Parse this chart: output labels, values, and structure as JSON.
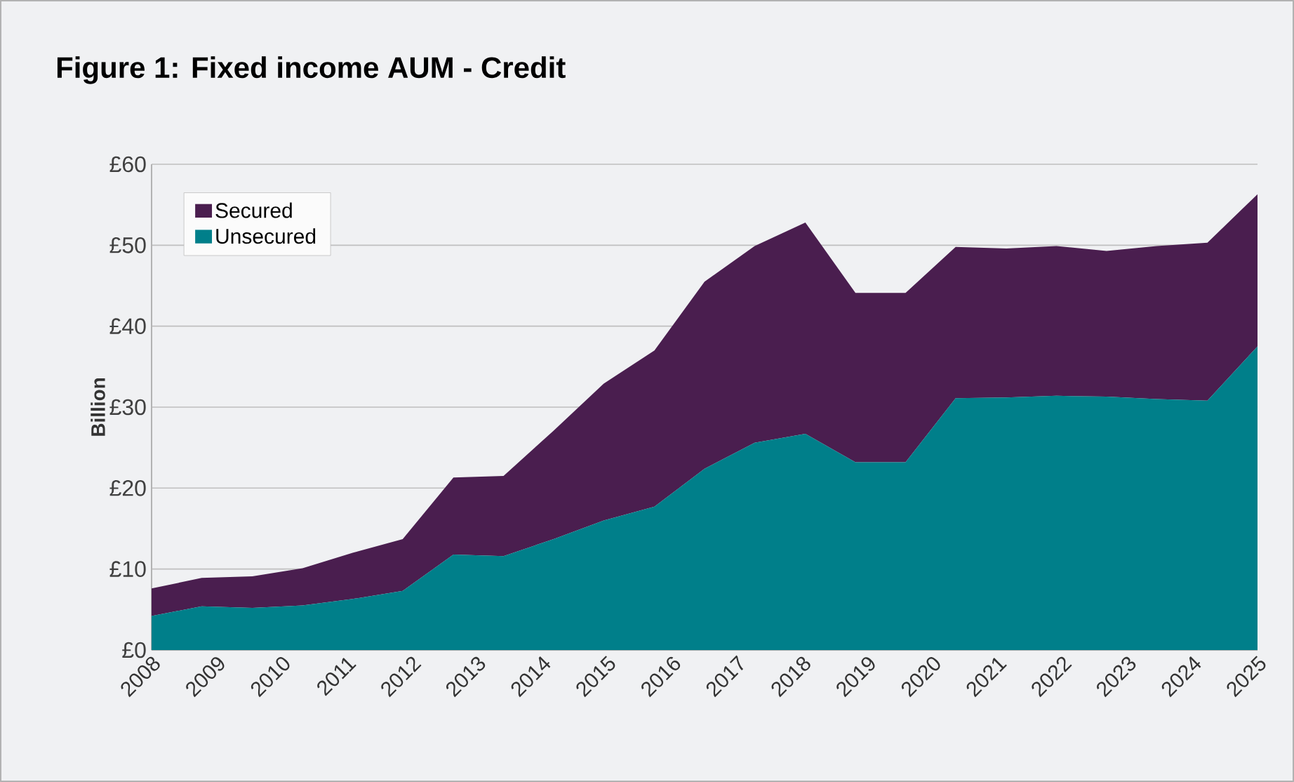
{
  "chart_data": {
    "type": "area",
    "title": "Figure 1: Fixed income AUM - Credit",
    "ylabel": "Billion",
    "stacked": true,
    "grid": "y",
    "legend": "top left",
    "x": [
      2008,
      2008.77,
      2009.55,
      2010.32,
      2011.09,
      2011.86,
      2012.64,
      2013.41,
      2014.18,
      2014.95,
      2015.73,
      2016.5,
      2017.27,
      2018.05,
      2018.82,
      2019.59,
      2020.36,
      2021.14,
      2021.91,
      2022.68,
      2023.45,
      2024.23,
      2025
    ],
    "xlim": [
      2008,
      2025
    ],
    "xticks": [
      2008,
      2009,
      2010,
      2011,
      2012,
      2013,
      2014,
      2015,
      2016,
      2017,
      2018,
      2019,
      2020,
      2021,
      2022,
      2023,
      2024,
      2025
    ],
    "ylim": [
      0,
      60
    ],
    "yticks": [
      {
        "value": 0,
        "label": "£0"
      },
      {
        "value": 10,
        "label": "£10"
      },
      {
        "value": 20,
        "label": "£20"
      },
      {
        "value": 30,
        "label": "£30"
      },
      {
        "value": 40,
        "label": "£40"
      },
      {
        "value": 50,
        "label": "£50"
      },
      {
        "value": 60,
        "label": "£60"
      }
    ],
    "series": [
      {
        "name": "Unsecured",
        "color": "#007f8a",
        "values": [
          4.2,
          5.4,
          5.2,
          5.5,
          6.3,
          7.3,
          11.8,
          11.6,
          13.7,
          16.0,
          17.7,
          22.4,
          25.6,
          26.7,
          23.2,
          23.2,
          31.1,
          31.2,
          31.4,
          31.3,
          31.0,
          30.8,
          37.5
        ]
      },
      {
        "name": "Secured",
        "color": "#4a1e4f",
        "values": [
          3.4,
          3.5,
          3.9,
          4.6,
          5.7,
          6.4,
          9.5,
          9.9,
          13.4,
          16.9,
          19.3,
          23.1,
          24.3,
          26.1,
          20.9,
          20.9,
          18.7,
          18.4,
          18.5,
          18.0,
          18.9,
          19.5,
          18.8
        ]
      }
    ]
  }
}
